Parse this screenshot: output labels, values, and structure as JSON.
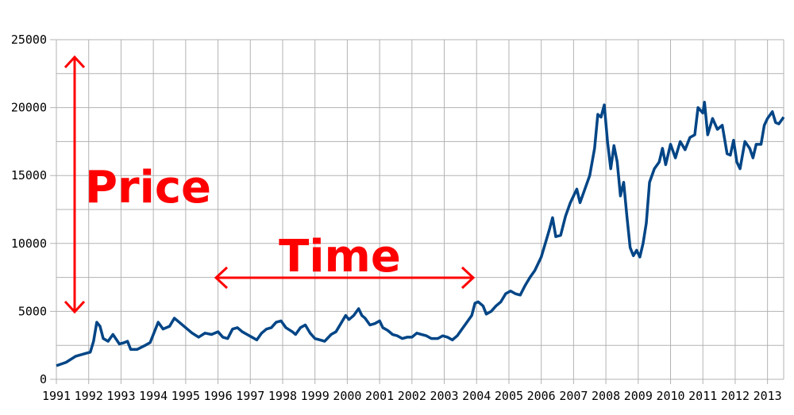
{
  "chart_data": {
    "type": "line",
    "annotations": [
      "Price",
      "Time"
    ],
    "xlim": [
      1991,
      2013.5
    ],
    "xticks": [
      1991,
      1992,
      1993,
      1994,
      1995,
      1996,
      1997,
      1998,
      1999,
      2000,
      2001,
      2002,
      2003,
      2004,
      2005,
      2006,
      2007,
      2008,
      2009,
      2010,
      2011,
      2012,
      2013
    ],
    "ylim": [
      0,
      25000
    ],
    "yticks": [
      0,
      5000,
      10000,
      15000,
      20000,
      25000
    ],
    "grid": true,
    "series": [
      {
        "color": "#004586",
        "x": [
          1991.0,
          1991.3,
          1991.6,
          1991.9,
          1992.05,
          1992.15,
          1992.25,
          1992.35,
          1992.45,
          1992.6,
          1992.75,
          1992.95,
          1993.1,
          1993.2,
          1993.3,
          1993.5,
          1993.75,
          1993.9,
          1994.0,
          1994.15,
          1994.3,
          1994.5,
          1994.65,
          1994.8,
          1995.0,
          1995.2,
          1995.4,
          1995.6,
          1995.8,
          1996.0,
          1996.15,
          1996.3,
          1996.45,
          1996.6,
          1996.75,
          1996.9,
          1997.05,
          1997.2,
          1997.35,
          1997.5,
          1997.65,
          1997.8,
          1997.95,
          1998.1,
          1998.3,
          1998.4,
          1998.55,
          1998.7,
          1998.85,
          1999.0,
          1999.15,
          1999.3,
          1999.5,
          1999.65,
          1999.8,
          1999.95,
          2000.05,
          2000.2,
          2000.35,
          2000.45,
          2000.55,
          2000.7,
          2000.85,
          2001.0,
          2001.1,
          2001.25,
          2001.4,
          2001.55,
          2001.7,
          2001.85,
          2002.0,
          2002.15,
          2002.3,
          2002.45,
          2002.6,
          2002.8,
          2002.95,
          2003.1,
          2003.25,
          2003.4,
          2003.55,
          2003.7,
          2003.85,
          2003.95,
          2004.05,
          2004.2,
          2004.3,
          2004.45,
          2004.6,
          2004.75,
          2004.9,
          2005.05,
          2005.2,
          2005.35,
          2005.5,
          2005.65,
          2005.8,
          2005.9,
          2006.0,
          2006.1,
          2006.25,
          2006.35,
          2006.45,
          2006.6,
          2006.75,
          2006.9,
          2007.0,
          2007.1,
          2007.2,
          2007.35,
          2007.5,
          2007.65,
          2007.75,
          2007.85,
          2007.95,
          2008.05,
          2008.15,
          2008.25,
          2008.35,
          2008.45,
          2008.55,
          2008.65,
          2008.75,
          2008.85,
          2008.95,
          2009.05,
          2009.15,
          2009.25,
          2009.35,
          2009.5,
          2009.65,
          2009.75,
          2009.85,
          2010.0,
          2010.15,
          2010.3,
          2010.45,
          2010.6,
          2010.75,
          2010.85,
          2011.0,
          2011.05,
          2011.15,
          2011.3,
          2011.45,
          2011.6,
          2011.75,
          2011.85,
          2011.95,
          2012.05,
          2012.15,
          2012.3,
          2012.45,
          2012.55,
          2012.65,
          2012.8,
          2012.9,
          2013.0,
          2013.15,
          2013.25,
          2013.35,
          2013.5
        ],
        "values": [
          1000,
          1250,
          1700,
          1900,
          2000,
          2800,
          4200,
          3900,
          3000,
          2800,
          3300,
          2600,
          2700,
          2800,
          2200,
          2200,
          2500,
          2700,
          3300,
          4200,
          3700,
          3900,
          4500,
          4200,
          3800,
          3400,
          3100,
          3400,
          3300,
          3500,
          3100,
          3000,
          3700,
          3800,
          3500,
          3300,
          3100,
          2900,
          3400,
          3700,
          3800,
          4200,
          4300,
          3800,
          3500,
          3300,
          3800,
          4000,
          3400,
          3000,
          2900,
          2800,
          3300,
          3500,
          4100,
          4700,
          4400,
          4700,
          5200,
          4700,
          4500,
          4000,
          4100,
          4300,
          3800,
          3600,
          3300,
          3200,
          3000,
          3100,
          3100,
          3400,
          3300,
          3200,
          3000,
          3000,
          3200,
          3100,
          2900,
          3200,
          3700,
          4200,
          4700,
          5600,
          5700,
          5400,
          4800,
          5000,
          5400,
          5700,
          6300,
          6500,
          6300,
          6200,
          6900,
          7500,
          8000,
          8500,
          9000,
          9800,
          11000,
          11900,
          10500,
          10600,
          12000,
          13000,
          13500,
          14000,
          13000,
          14000,
          15000,
          17000,
          19500,
          19300,
          20200,
          17500,
          15500,
          17200,
          16000,
          13500,
          14500,
          12000,
          9700,
          9100,
          9500,
          9000,
          10000,
          11500,
          14500,
          15500,
          16000,
          17000,
          15800,
          17300,
          16300,
          17500,
          16900,
          17800,
          18000,
          20000,
          19600,
          20400,
          18000,
          19200,
          18400,
          18700,
          16600,
          16500,
          17600,
          16000,
          15500,
          17500,
          17000,
          16300,
          17300,
          17300,
          18700,
          19200,
          19700,
          18900,
          18800,
          19300
        ]
      }
    ]
  }
}
